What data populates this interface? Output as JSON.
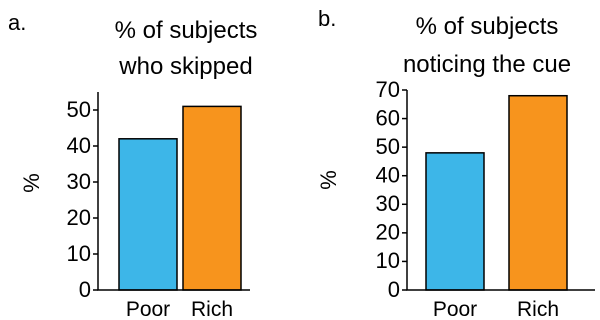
{
  "colors": {
    "poor": "#3db6e8",
    "rich": "#f7941d"
  },
  "chart_data": [
    {
      "panel": "a.",
      "type": "bar",
      "title_lines": [
        "% of subjects",
        "who skipped"
      ],
      "ylabel": "%",
      "xlabel": "",
      "categories": [
        "Poor",
        "Rich"
      ],
      "values": [
        42,
        51
      ],
      "ylim": [
        0,
        55
      ],
      "yticks": [
        0,
        10,
        20,
        30,
        40,
        50
      ],
      "grid": false,
      "legend": "none"
    },
    {
      "panel": "b.",
      "type": "bar",
      "title_lines": [
        "% of subjects",
        "noticing the cue"
      ],
      "ylabel": "%",
      "xlabel": "",
      "categories": [
        "Poor",
        "Rich"
      ],
      "values": [
        48,
        68
      ],
      "ylim": [
        0,
        70
      ],
      "yticks": [
        0,
        10,
        20,
        30,
        40,
        50,
        60,
        70
      ],
      "grid": false,
      "legend": "none"
    }
  ]
}
